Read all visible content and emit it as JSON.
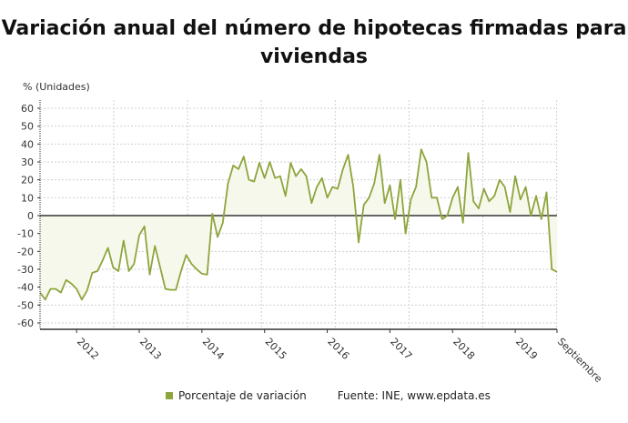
{
  "title": "Variación anual del número de hipotecas firmadas para viviendas",
  "colors": {
    "line": "#8da53c",
    "fill": "#f6f8ec"
  },
  "legend": {
    "series": "Porcentaje de variación",
    "source": "Fuente: INE, www.epdata.es"
  },
  "chart_data": {
    "type": "area",
    "title": "Variación anual del número de hipotecas firmadas para viviendas",
    "ylabel": "% (Unidades)",
    "ylim": [
      -60,
      60
    ],
    "yticks": [
      "60",
      "50",
      "40",
      "30",
      "20",
      "10",
      "0",
      "-10",
      "-20",
      "-30",
      "-40",
      "-50",
      "-60"
    ],
    "xticks": [
      {
        "label": "2012",
        "month": "2012-01"
      },
      {
        "label": "2013",
        "month": "2013-01"
      },
      {
        "label": "2014",
        "month": "2014-01"
      },
      {
        "label": "2015",
        "month": "2015-01"
      },
      {
        "label": "2016",
        "month": "2016-01"
      },
      {
        "label": "2017",
        "month": "2017-01"
      },
      {
        "label": "2018",
        "month": "2018-01"
      },
      {
        "label": "2019",
        "month": "2019-01"
      },
      {
        "label": "Septiembre",
        "month": "2019-09"
      }
    ],
    "grid": true,
    "legend_position": "bottom",
    "x_start": "2011-06",
    "x_end": "2019-09",
    "series": [
      {
        "name": "Porcentaje de variación",
        "values": [
          -43,
          -47,
          -41,
          -41,
          -43,
          -36,
          -38,
          -41,
          -47,
          -42,
          -32,
          -31,
          -25,
          -18,
          -29,
          -31,
          -14,
          -31,
          -27,
          -11,
          -6,
          -33,
          -17,
          -29,
          -41,
          -41.5,
          -41.5,
          -31,
          -22,
          -27,
          -30,
          -32.5,
          -33,
          1,
          -12,
          -4,
          18,
          28,
          26,
          33,
          20,
          19,
          29.5,
          21,
          30,
          21,
          22,
          11,
          29.5,
          22,
          26,
          22,
          7,
          16,
          21,
          10,
          16,
          15,
          26,
          34,
          16,
          -15,
          6,
          10,
          18,
          34,
          7,
          17,
          -2,
          20,
          -10,
          9,
          16,
          37,
          30,
          10,
          10,
          -2,
          0,
          10,
          16,
          -4,
          35,
          8,
          4,
          15,
          8,
          11,
          20,
          16,
          2,
          22,
          9,
          16,
          0,
          11,
          -2,
          13,
          -30,
          -31.5
        ]
      }
    ]
  }
}
